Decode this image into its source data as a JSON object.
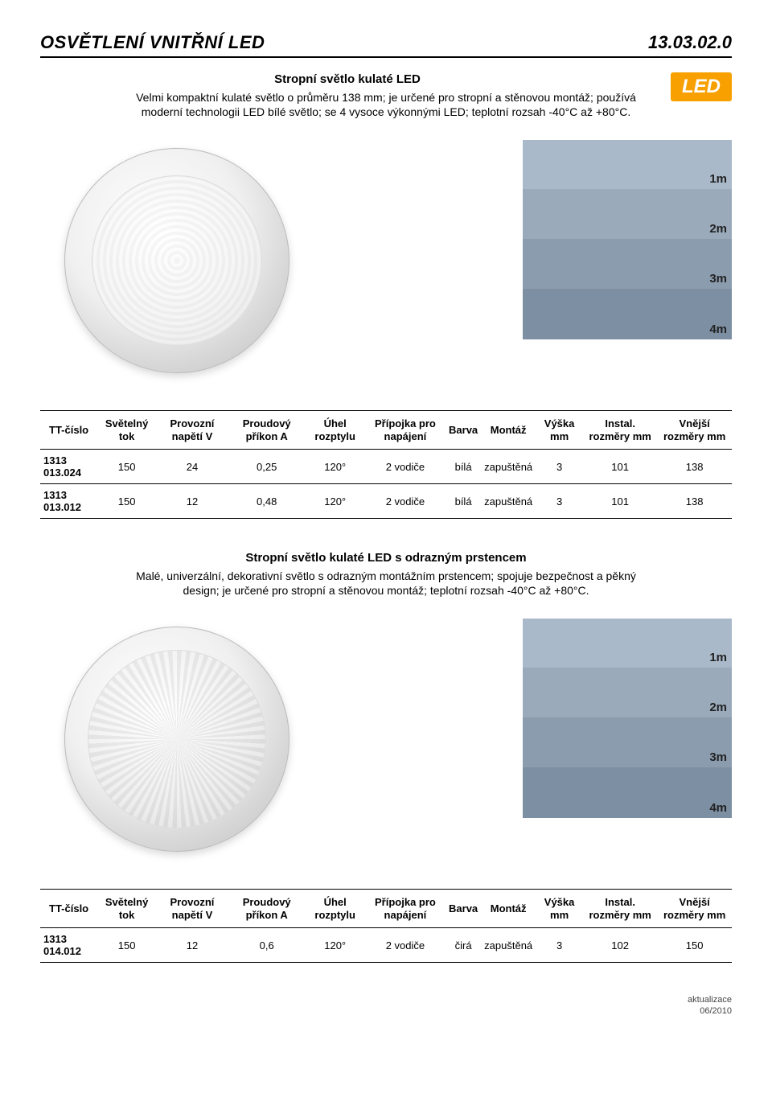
{
  "page": {
    "title": "OSVĚTLENÍ VNITŘNÍ LED",
    "code": "13.03.02.0",
    "led_tag": "LED"
  },
  "section1": {
    "title": "Stropní světlo kulaté LED",
    "desc": "Velmi kompaktní kulaté světlo o průměru 138 mm; je určené pro stropní a stěnovou montáž; používá moderní technologii LED bílé světlo; se 4 vysoce výkonnými LED; teplotní rozsah -40°C až +80°C."
  },
  "beam_labels": {
    "d1": "1m",
    "d2": "2m",
    "d3": "3m",
    "d4": "4m"
  },
  "beam_colors": {
    "b1": "#aab9c9",
    "b2": "#9aaabb",
    "b3": "#8b9cae",
    "b4": "#7d8fa2"
  },
  "table_headers": {
    "ttcislo": "TT-číslo",
    "svetelny": "Světelný tok",
    "provozni": "Provozní napětí V",
    "proudovy": "Proudový příkon A",
    "uhel": "Úhel rozptylu",
    "pripojka": "Přípojka pro napájení",
    "barva": "Barva",
    "montaz": "Montáž",
    "vyska": "Výška mm",
    "instal": "Instal. rozměry mm",
    "vnejsi": "Vnější rozměry mm"
  },
  "table1": {
    "rows": [
      {
        "code": "1313 013.024",
        "lumen": "150",
        "volt": "24",
        "amp": "0,25",
        "angle": "120°",
        "conn": "2 vodiče",
        "color": "bílá",
        "mount": "zapuštěná",
        "h": "3",
        "inst": "101",
        "outer": "138"
      },
      {
        "code": "1313 013.012",
        "lumen": "150",
        "volt": "12",
        "amp": "0,48",
        "angle": "120°",
        "conn": "2 vodiče",
        "color": "bílá",
        "mount": "zapuštěná",
        "h": "3",
        "inst": "101",
        "outer": "138"
      }
    ]
  },
  "section2": {
    "title": "Stropní světlo kulaté LED s odrazným prstencem",
    "desc": "Malé, univerzální, dekorativní světlo s odrazným montážním prstencem; spojuje bezpečnost a pěkný design; je určené pro stropní a stěnovou montáž; teplotní rozsah -40°C až +80°C."
  },
  "table2": {
    "rows": [
      {
        "code": "1313 014.012",
        "lumen": "150",
        "volt": "12",
        "amp": "0,6",
        "angle": "120°",
        "conn": "2 vodiče",
        "color": "čirá",
        "mount": "zapuštěná",
        "h": "3",
        "inst": "102",
        "outer": "150"
      }
    ]
  },
  "footer": {
    "label": "aktualizace",
    "date": "06/2010"
  }
}
